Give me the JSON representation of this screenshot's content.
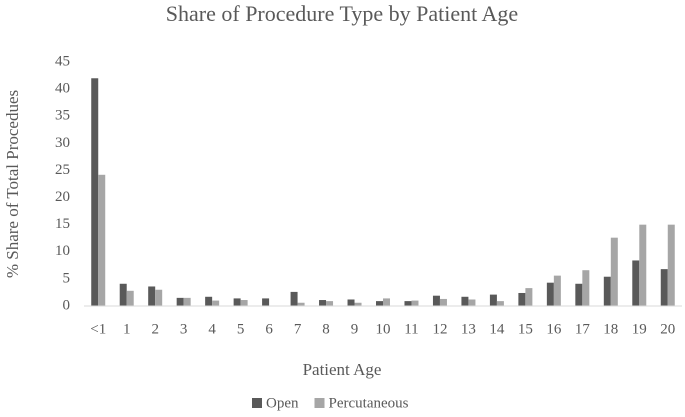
{
  "chart_data": {
    "type": "bar",
    "title": "Share of Procedure Type by Patient Age",
    "x_label": "Patient Age",
    "y_label": "% Share of Total Procedues",
    "categories": [
      "<1",
      "1",
      "2",
      "3",
      "4",
      "5",
      "6",
      "7",
      "8",
      "9",
      "10",
      "11",
      "12",
      "13",
      "14",
      "15",
      "16",
      "17",
      "18",
      "19",
      "20"
    ],
    "series": [
      {
        "name": "Open",
        "color": "#595959",
        "values": [
          42,
          4.1,
          3.6,
          1.5,
          1.7,
          1.4,
          1.4,
          2.6,
          1.1,
          1.2,
          0.9,
          0.9,
          1.9,
          1.7,
          2.1,
          2.4,
          4.3,
          4.1,
          5.4,
          8.4,
          6.8
        ]
      },
      {
        "name": "Percutaneous",
        "color": "#a6a6a6",
        "values": [
          24.2,
          2.8,
          3.0,
          1.5,
          1.0,
          1.1,
          0,
          0.6,
          0.9,
          0.6,
          1.4,
          1.0,
          1.3,
          1.2,
          0.9,
          3.3,
          5.6,
          6.6,
          12.6,
          15,
          15
        ]
      }
    ],
    "ylim": [
      0,
      45
    ],
    "yticks": [
      0,
      5,
      10,
      15,
      20,
      25,
      30,
      35,
      40,
      45
    ],
    "grid": false,
    "legend": "bottom"
  }
}
